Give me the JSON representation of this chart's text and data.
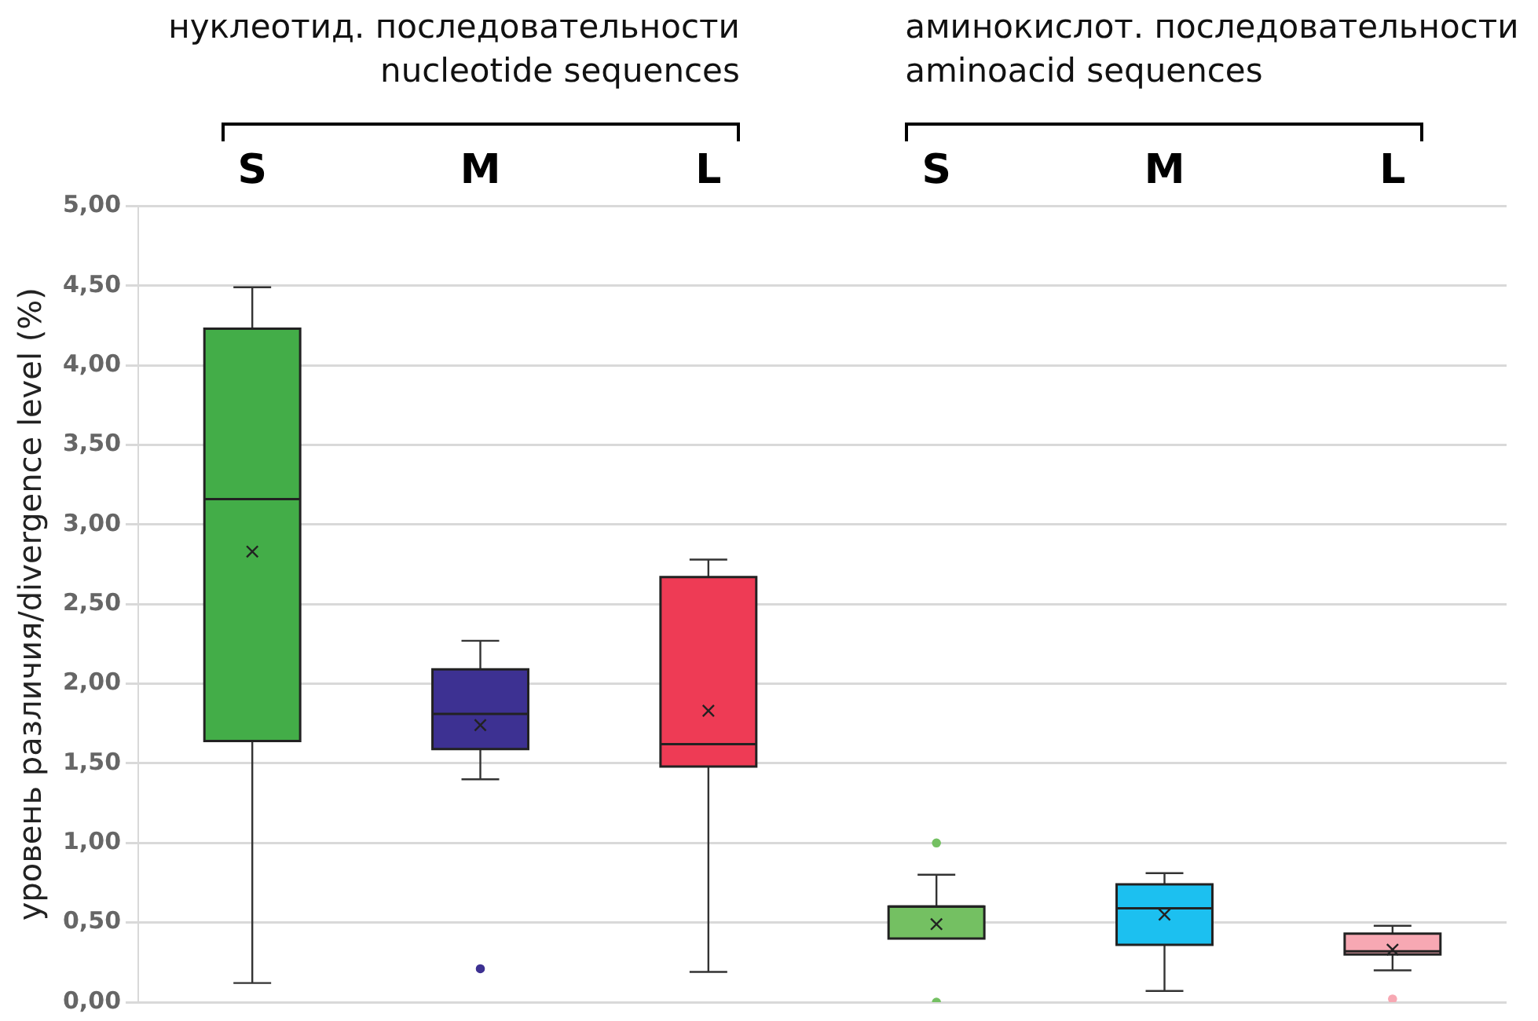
{
  "chart_data": {
    "type": "box",
    "ylabel": "уровень различия/divergence level (%)",
    "annotations": [
      "нуклеотид. последовательности",
      "nucleotide sequences",
      "аминокислот. последовательности",
      "aminoacid sequences"
    ],
    "categories": [
      "S",
      "M",
      "L",
      "S",
      "M",
      "L"
    ],
    "colors": [
      "#43ad48",
      "#3d3192",
      "#ee3b55",
      "#74c062",
      "#1cc0f0",
      "#f7a8b3"
    ],
    "boxes": [
      {
        "low": 0.12,
        "q1": 1.64,
        "median": 3.16,
        "q3": 4.23,
        "high": 4.49,
        "mean": 2.83
      },
      {
        "low": 1.4,
        "q1": 1.59,
        "median": 1.81,
        "q3": 2.09,
        "high": 2.27,
        "mean": 1.74,
        "outliers": [
          0.21
        ]
      },
      {
        "low": 0.19,
        "q1": 1.48,
        "median": 1.62,
        "q3": 2.67,
        "high": 2.78,
        "mean": 1.83
      },
      {
        "low": 0.4,
        "q1": 0.4,
        "median": 0.6,
        "q3": 0.6,
        "high": 0.8,
        "mean": 0.49,
        "outliers": [
          1.0,
          0.0
        ]
      },
      {
        "low": 0.07,
        "q1": 0.36,
        "median": 0.59,
        "q3": 0.74,
        "high": 0.81,
        "mean": 0.55
      },
      {
        "low": 0.2,
        "q1": 0.3,
        "median": 0.32,
        "q3": 0.43,
        "high": 0.48,
        "mean": 0.33,
        "outliers": [
          0.02
        ]
      }
    ],
    "ylim": [
      0,
      5
    ],
    "yticks": [
      {
        "value": 0,
        "label": "0,00"
      },
      {
        "value": 0.5,
        "label": "0,50"
      },
      {
        "value": 1,
        "label": "1,00"
      },
      {
        "value": 1.5,
        "label": "1,50"
      },
      {
        "value": 2,
        "label": "2,00"
      },
      {
        "value": 2.5,
        "label": "2,50"
      },
      {
        "value": 3,
        "label": "3,00"
      },
      {
        "value": 3.5,
        "label": "3,50"
      },
      {
        "value": 4,
        "label": "4,00"
      },
      {
        "value": 4.5,
        "label": "4,50"
      },
      {
        "value": 5,
        "label": "5,00"
      }
    ],
    "grid": "y",
    "legend": false
  }
}
